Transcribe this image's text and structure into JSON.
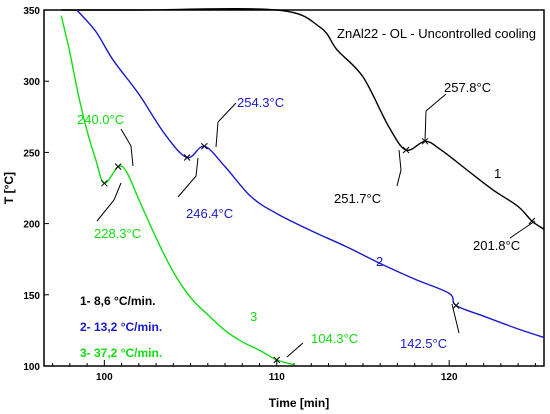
{
  "chart_data": {
    "type": "line",
    "title": "ZnAl22 - OL - Uncontrolled cooling",
    "xlabel": "Time [min]",
    "ylabel": "T [°C]",
    "xlim": [
      96.5,
      125.5
    ],
    "ylim": [
      100,
      350
    ],
    "x_ticks": [
      100,
      110,
      120
    ],
    "y_ticks": [
      100,
      150,
      200,
      250,
      300,
      350
    ],
    "grid": false,
    "colors": {
      "series_1": "#000000",
      "series_2": "#1a1acc",
      "series_3": "#11dd11"
    },
    "series": [
      {
        "name": "1",
        "color": "#000000",
        "points": [
          [
            97.5,
            350
          ],
          [
            102,
            350
          ],
          [
            110,
            350
          ],
          [
            112.5,
            338
          ],
          [
            113.5,
            322
          ],
          [
            115,
            303
          ],
          [
            116.5,
            268
          ],
          [
            117.5,
            251.7
          ],
          [
            118.6,
            257.8
          ],
          [
            119.5,
            252
          ],
          [
            121,
            238
          ],
          [
            122.5,
            224
          ],
          [
            124,
            212
          ],
          [
            124.8,
            201.8
          ],
          [
            125.5,
            196
          ]
        ]
      },
      {
        "name": "2",
        "color": "#1a1acc",
        "points": [
          [
            98.4,
            350
          ],
          [
            99.5,
            335
          ],
          [
            100.5,
            315
          ],
          [
            102,
            291
          ],
          [
            103.5,
            263
          ],
          [
            104.8,
            246.4
          ],
          [
            105.8,
            254.3
          ],
          [
            107,
            240
          ],
          [
            108.5,
            219
          ],
          [
            110,
            207
          ],
          [
            112,
            195
          ],
          [
            114,
            184
          ],
          [
            116,
            172
          ],
          [
            118,
            161
          ],
          [
            120,
            151
          ],
          [
            120.4,
            142.5
          ],
          [
            122,
            135
          ],
          [
            124,
            126
          ],
          [
            125.5,
            120
          ]
        ]
      },
      {
        "name": "3",
        "color": "#11dd11",
        "points": [
          [
            97.5,
            346
          ],
          [
            98,
            320
          ],
          [
            98.5,
            290
          ],
          [
            99,
            265
          ],
          [
            99.5,
            245
          ],
          [
            100,
            228.3
          ],
          [
            100.8,
            240.0
          ],
          [
            101.3,
            236
          ],
          [
            102,
            217
          ],
          [
            103,
            190
          ],
          [
            104,
            166
          ],
          [
            105,
            148
          ],
          [
            106,
            136
          ],
          [
            107,
            125
          ],
          [
            108,
            117
          ],
          [
            109,
            111
          ],
          [
            110,
            104.3
          ],
          [
            111,
            101
          ]
        ]
      }
    ],
    "annotations": [
      {
        "text": "257.8°C",
        "series": "1"
      },
      {
        "text": "251.7°C",
        "series": "1"
      },
      {
        "text": "201.8°C",
        "series": "1"
      },
      {
        "text": "254.3°C",
        "series": "2"
      },
      {
        "text": "246.4°C",
        "series": "2"
      },
      {
        "text": "142.5°C",
        "series": "2"
      },
      {
        "text": "240.0°C",
        "series": "3"
      },
      {
        "text": "228.3°C",
        "series": "3"
      },
      {
        "text": "104.3°C",
        "series": "3"
      }
    ],
    "series_labels": [
      "1",
      "2",
      "3"
    ],
    "legend": [
      {
        "text": "1- 8,6 °C/min.",
        "series": "1"
      },
      {
        "text": "2- 13,2 °C/min.",
        "series": "2"
      },
      {
        "text": "3- 37,2 °C/min.",
        "series": "3"
      }
    ],
    "legend_position": "bottom-left"
  }
}
